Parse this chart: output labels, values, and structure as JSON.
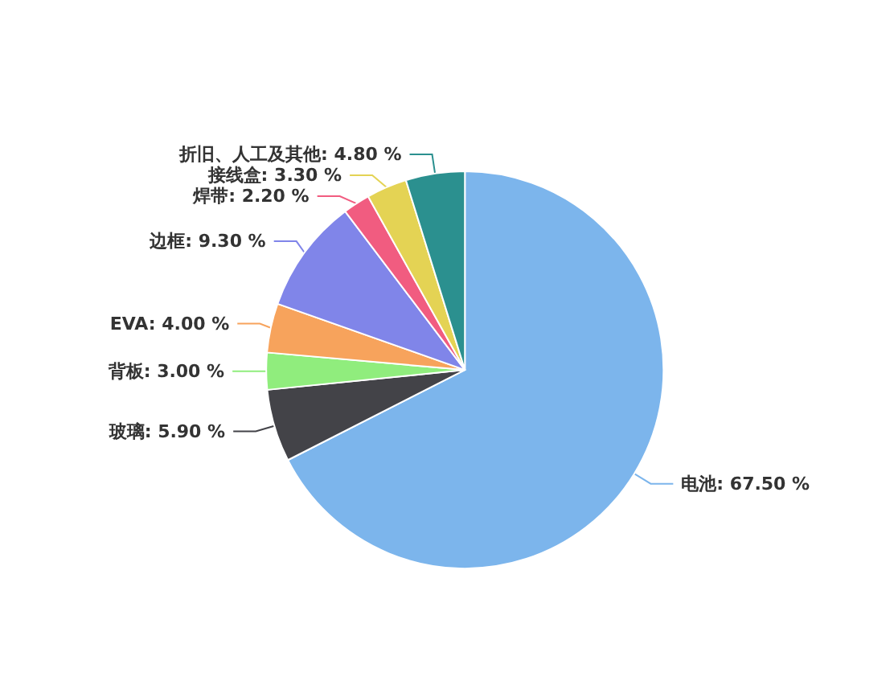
{
  "chart_data": {
    "type": "pie",
    "categories": [
      "电池",
      "玻璃",
      "背板",
      "EVA",
      "边框",
      "焊带",
      "接线盒",
      "折旧、人工及其他"
    ],
    "values": [
      67.5,
      5.9,
      3.0,
      4.0,
      9.3,
      2.2,
      3.3,
      4.8
    ],
    "value_labels": [
      "67.50 %",
      "5.90 %",
      "3.00 %",
      "4.00 %",
      "9.30 %",
      "2.20 %",
      "3.30 %",
      "4.80 %"
    ],
    "colors": [
      "#7cb5ec",
      "#434348",
      "#90ed7d",
      "#f7a35c",
      "#8085e9",
      "#f15c80",
      "#e4d354",
      "#2b908f"
    ],
    "legend": false
  }
}
